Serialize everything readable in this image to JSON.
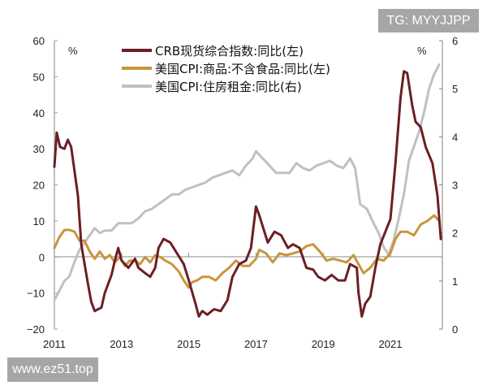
{
  "watermarks": {
    "top": "TG: MYYJJPP",
    "bottom": "www.ez51.top"
  },
  "chart_data": {
    "type": "line",
    "title": "",
    "xlabel": "",
    "ylabel": "%",
    "ylabel_right": "%",
    "xlim": [
      2011,
      2022.6
    ],
    "ylim": [
      -20,
      60
    ],
    "ylim_right": [
      0,
      6
    ],
    "x_ticks": [
      "2011",
      "2013",
      "2015",
      "2017",
      "2019",
      "2021"
    ],
    "y_ticks_left": [
      "60",
      "50",
      "40",
      "30",
      "20",
      "10",
      "0",
      "-20",
      "-10"
    ],
    "y_ticks_left_values": [
      60,
      50,
      40,
      30,
      20,
      10,
      0,
      -10,
      -20
    ],
    "y_ticks_right_values": [
      6,
      5,
      4,
      3,
      2,
      1,
      0
    ],
    "grid": false,
    "legend_position": "top-center",
    "series": [
      {
        "name": "CRB现货综合指数:同比(左)",
        "axis": "left",
        "color": "#6b1f24",
        "x": [
          2011.0,
          2011.07,
          2011.17,
          2011.3,
          2011.4,
          2011.5,
          2011.7,
          2011.8,
          2012.0,
          2012.1,
          2012.2,
          2012.4,
          2012.5,
          2012.7,
          2012.8,
          2012.9,
          2013.0,
          2013.2,
          2013.4,
          2013.5,
          2013.7,
          2013.85,
          2014.0,
          2014.1,
          2014.25,
          2014.45,
          2014.65,
          2014.85,
          2015.0,
          2015.2,
          2015.3,
          2015.4,
          2015.55,
          2015.75,
          2015.95,
          2016.15,
          2016.3,
          2016.5,
          2016.7,
          2016.85,
          2017.0,
          2017.1,
          2017.35,
          2017.55,
          2017.75,
          2017.95,
          2018.1,
          2018.3,
          2018.5,
          2018.7,
          2018.85,
          2019.05,
          2019.25,
          2019.45,
          2019.65,
          2019.8,
          2020.0,
          2020.05,
          2020.15,
          2020.25,
          2020.4,
          2020.55,
          2020.7,
          2020.85,
          2021.0,
          2021.15,
          2021.3,
          2021.4,
          2021.5,
          2021.65,
          2021.75,
          2021.9,
          2022.05,
          2022.25,
          2022.4,
          2022.5
        ],
        "values": [
          25,
          34.5,
          30.5,
          30,
          32.5,
          30.5,
          17,
          3.5,
          -7.5,
          -12.5,
          -15,
          -14,
          -10,
          -5,
          -1,
          2.5,
          -1,
          -3,
          -0.5,
          -3,
          -4.5,
          -5.5,
          -3,
          2.5,
          5,
          4,
          1,
          -2,
          -6.5,
          -13,
          -16.5,
          -15,
          -16,
          -14.5,
          -15,
          -12,
          -5.5,
          -2,
          -1,
          2.5,
          14,
          11.5,
          4,
          7,
          6,
          2.5,
          3.5,
          2.5,
          -3,
          -3.5,
          -5.5,
          -6.5,
          -5,
          -6.5,
          -6.5,
          -2,
          -3,
          -10,
          -16.5,
          -13,
          -11,
          -3,
          3.5,
          7,
          10.5,
          26,
          44,
          51.5,
          51,
          42,
          37.5,
          36,
          30.5,
          26,
          17,
          5
        ]
      },
      {
        "name": "美国CPI:商品:不含食品:同比(左)",
        "axis": "left",
        "color": "#c8963e",
        "x": [
          2011.0,
          2011.15,
          2011.3,
          2011.45,
          2011.6,
          2011.75,
          2011.9,
          2012.05,
          2012.2,
          2012.35,
          2012.5,
          2012.65,
          2012.8,
          2012.95,
          2013.1,
          2013.25,
          2013.4,
          2013.55,
          2013.7,
          2013.85,
          2014.0,
          2014.15,
          2014.3,
          2014.5,
          2014.7,
          2014.85,
          2015.0,
          2015.1,
          2015.25,
          2015.4,
          2015.6,
          2015.8,
          2016.0,
          2016.2,
          2016.4,
          2016.6,
          2016.8,
          2017.0,
          2017.1,
          2017.3,
          2017.5,
          2017.7,
          2017.9,
          2018.1,
          2018.3,
          2018.5,
          2018.7,
          2018.9,
          2019.1,
          2019.3,
          2019.5,
          2019.7,
          2019.9,
          2020.05,
          2020.2,
          2020.4,
          2020.6,
          2020.8,
          2021.0,
          2021.15,
          2021.3,
          2021.5,
          2021.7,
          2021.9,
          2022.1,
          2022.3,
          2022.45
        ],
        "values": [
          2.5,
          5.5,
          7.5,
          7.5,
          7,
          4.5,
          4.5,
          1.5,
          -0.5,
          1.5,
          -0.5,
          0.5,
          -1.5,
          0,
          -2.5,
          -1,
          -1,
          -2,
          0,
          -1.5,
          0.5,
          0,
          -1,
          -2,
          -4,
          -6.5,
          -8.5,
          -7,
          -6.5,
          -5.5,
          -5.5,
          -6.5,
          -4.5,
          -3,
          -1,
          -2.5,
          -2.5,
          -0.5,
          2,
          1,
          -1.5,
          1,
          0.5,
          1,
          1.5,
          3,
          3.5,
          1.5,
          -1,
          -0.5,
          -1,
          -1.5,
          0.5,
          -2,
          -4.5,
          -3,
          -0.5,
          -1,
          1,
          5,
          7,
          7,
          6,
          9,
          10,
          11.5,
          10
        ]
      },
      {
        "name": "美国CPI:住房租金:同比(右)",
        "axis": "right",
        "color": "#c0c0c0",
        "x": [
          2011.0,
          2011.15,
          2011.3,
          2011.45,
          2011.6,
          2011.75,
          2011.9,
          2012.05,
          2012.2,
          2012.35,
          2012.5,
          2012.7,
          2012.9,
          2013.1,
          2013.3,
          2013.5,
          2013.7,
          2013.9,
          2014.1,
          2014.3,
          2014.5,
          2014.7,
          2014.9,
          2015.1,
          2015.3,
          2015.5,
          2015.7,
          2015.9,
          2016.1,
          2016.3,
          2016.5,
          2016.7,
          2016.9,
          2017.0,
          2017.2,
          2017.4,
          2017.6,
          2017.8,
          2018.0,
          2018.2,
          2018.4,
          2018.6,
          2018.8,
          2019.0,
          2019.2,
          2019.4,
          2019.6,
          2019.8,
          2019.95,
          2020.1,
          2020.3,
          2020.5,
          2020.65,
          2020.8,
          2020.95,
          2021.1,
          2021.25,
          2021.4,
          2021.55,
          2021.7,
          2021.85,
          2022.0,
          2022.15,
          2022.3,
          2022.45
        ],
        "values": [
          0.6,
          0.8,
          1.0,
          1.1,
          1.4,
          1.65,
          1.8,
          1.95,
          2.1,
          2.0,
          2.05,
          2.05,
          2.2,
          2.2,
          2.2,
          2.3,
          2.45,
          2.5,
          2.6,
          2.7,
          2.8,
          2.8,
          2.9,
          2.95,
          3.0,
          3.05,
          3.15,
          3.2,
          3.25,
          3.3,
          3.2,
          3.4,
          3.55,
          3.7,
          3.55,
          3.4,
          3.25,
          3.25,
          3.25,
          3.45,
          3.35,
          3.3,
          3.4,
          3.45,
          3.5,
          3.4,
          3.35,
          3.55,
          3.35,
          2.6,
          2.5,
          2.2,
          2.0,
          1.7,
          1.55,
          1.85,
          2.3,
          2.8,
          3.5,
          3.8,
          4.1,
          4.5,
          5.0,
          5.3,
          5.5
        ]
      }
    ]
  }
}
